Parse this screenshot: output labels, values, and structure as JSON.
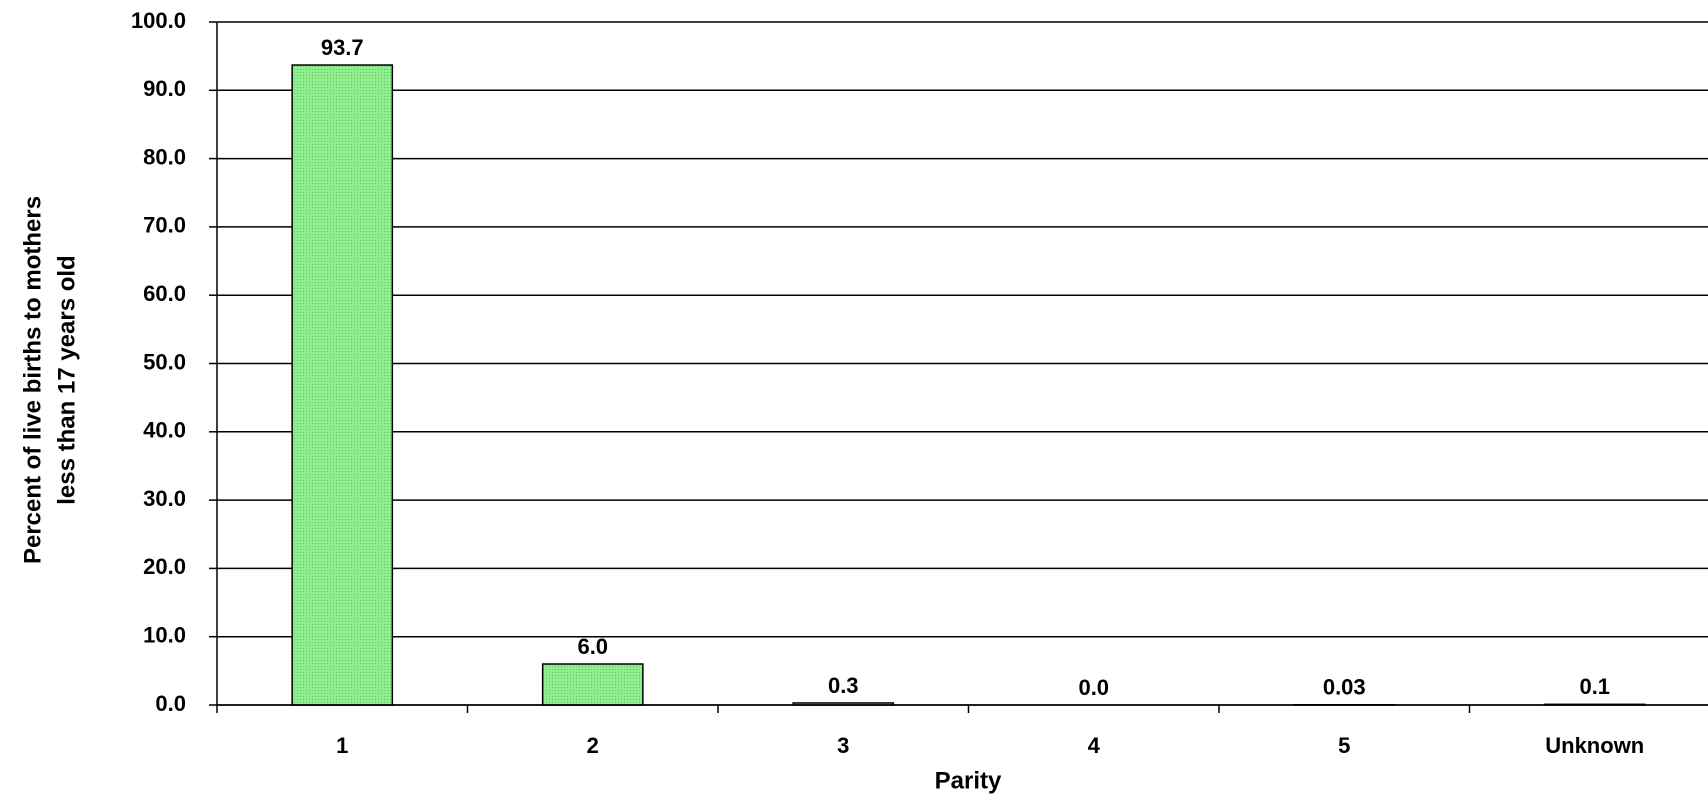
{
  "chart_data": {
    "type": "bar",
    "xlabel": "Parity",
    "ylabel": [
      "Percent of live births to mothers",
      "less than 17 years old"
    ],
    "categories": [
      "1",
      "2",
      "3",
      "4",
      "5",
      "Unknown"
    ],
    "values": [
      93.7,
      6.0,
      0.3,
      0.0,
      0.03,
      0.1
    ],
    "value_labels": [
      "93.7",
      "6.0",
      "0.3",
      "0.0",
      "0.03",
      "0.1"
    ],
    "color": "#90ee90",
    "ylim": [
      0,
      100
    ],
    "yticks": [
      {
        "value": 0,
        "label": "0.0"
      },
      {
        "value": 10,
        "label": "10.0"
      },
      {
        "value": 20,
        "label": "20.0"
      },
      {
        "value": 30,
        "label": "30.0"
      },
      {
        "value": 40,
        "label": "40.0"
      },
      {
        "value": 50,
        "label": "50.0"
      },
      {
        "value": 60,
        "label": "60.0"
      },
      {
        "value": 70,
        "label": "70.0"
      },
      {
        "value": 80,
        "label": "80.0"
      },
      {
        "value": 90,
        "label": "90.0"
      },
      {
        "value": 100,
        "label": "100.0"
      }
    ],
    "grid": true
  }
}
